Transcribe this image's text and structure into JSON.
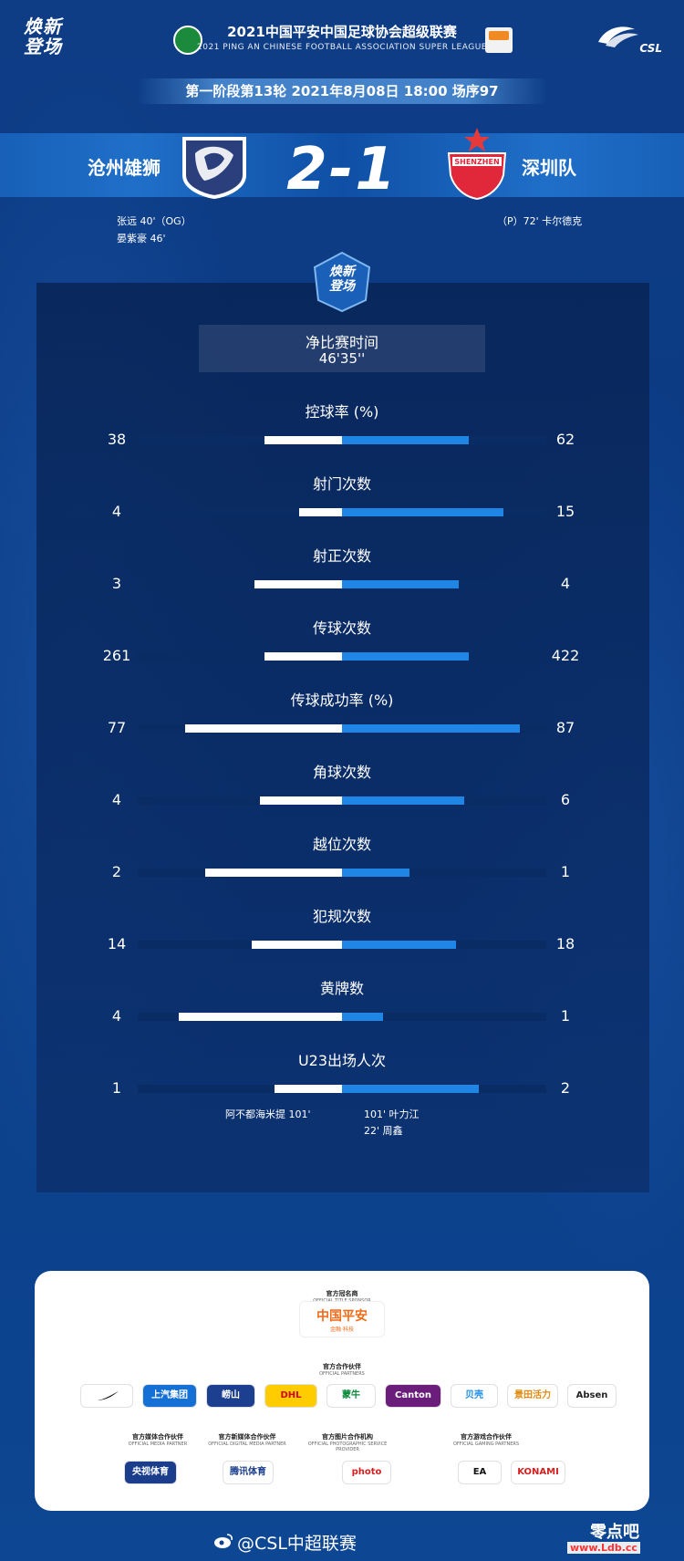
{
  "header": {
    "brand": "焕新\n登场",
    "league_title": "2021中国平安中国足球协会超级联赛",
    "league_subtitle": "2021 PING AN CHINESE FOOTBALL ASSOCIATION SUPER LEAGUE",
    "csl_logo_text": "CSL",
    "round_info": "第一阶段第13轮  2021年8月08日 18:00 场序97"
  },
  "match": {
    "home_team": "沧州雄狮",
    "away_team": "深圳队",
    "score": "2-1",
    "away_crest_text": "SHENZHEN",
    "home_scorers": [
      "张远  40'（OG）",
      "晏紫豪  46'"
    ],
    "away_scorers": [
      "（P）72'  卡尔德克"
    ]
  },
  "panel": {
    "badge_text": "焕新\n登场",
    "net_time_label": "净比赛时间",
    "net_time_value": "46'35''"
  },
  "stats": [
    {
      "label": "控球率 (%)",
      "home": "38",
      "away": "62",
      "home_frac": 0.38,
      "away_frac": 0.62
    },
    {
      "label": "射门次数",
      "home": "4",
      "away": "15",
      "home_frac": 0.21,
      "away_frac": 0.79
    },
    {
      "label": "射正次数",
      "home": "3",
      "away": "4",
      "home_frac": 0.43,
      "away_frac": 0.57
    },
    {
      "label": "传球次数",
      "home": "261",
      "away": "422",
      "home_frac": 0.38,
      "away_frac": 0.62
    },
    {
      "label": "传球成功率 (%)",
      "home": "77",
      "away": "87",
      "home_frac": 0.77,
      "away_frac": 0.87
    },
    {
      "label": "角球次数",
      "home": "4",
      "away": "6",
      "home_frac": 0.4,
      "away_frac": 0.6
    },
    {
      "label": "越位次数",
      "home": "2",
      "away": "1",
      "home_frac": 0.67,
      "away_frac": 0.33
    },
    {
      "label": "犯规次数",
      "home": "14",
      "away": "18",
      "home_frac": 0.44,
      "away_frac": 0.56
    },
    {
      "label": "黄牌数",
      "home": "4",
      "away": "1",
      "home_frac": 0.8,
      "away_frac": 0.2
    },
    {
      "label": "U23出场人次",
      "home": "1",
      "away": "2",
      "home_frac": 0.33,
      "away_frac": 0.67
    }
  ],
  "u23": {
    "home_players": [
      "阿不都海米提   101'"
    ],
    "away_players": [
      "101'   叶力江",
      "22'   周鑫"
    ]
  },
  "sponsors": {
    "title_sponsor_caption": "官方冠名商",
    "title_sponsor_caption_en": "OFFICIAL TITLE SPONSOR",
    "title_sponsor_name": "中国平安",
    "title_sponsor_tag": "金融·科技",
    "partners_caption": "官方合作伙伴",
    "partners_caption_en": "OFFICIAL PARTNERS",
    "partners": [
      {
        "name": "",
        "bg": "#ffffff",
        "fg": "#111111"
      },
      {
        "name": "上汽集团",
        "bg": "#1470d4",
        "fg": "#ffffff"
      },
      {
        "name": "崂山",
        "bg": "#1d3f8f",
        "fg": "#ffffff"
      },
      {
        "name": "DHL",
        "bg": "#ffcc00",
        "fg": "#d40511"
      },
      {
        "name": "蒙牛",
        "bg": "#ffffff",
        "fg": "#0a8a3a"
      },
      {
        "name": "Canton",
        "bg": "#6a1d7a",
        "fg": "#ffffff"
      },
      {
        "name": "贝壳",
        "bg": "#ffffff",
        "fg": "#1d8de6"
      },
      {
        "name": "景田活力",
        "bg": "#ffffff",
        "fg": "#e08a10"
      },
      {
        "name": "Absen",
        "bg": "#ffffff",
        "fg": "#222222"
      }
    ],
    "group_captions": [
      {
        "cn": "官方媒体合作伙伴",
        "en": "OFFICIAL MEDIA PARTNER"
      },
      {
        "cn": "官方新媒体合作伙伴",
        "en": "OFFICIAL DIGITAL MEDIA PARTNER"
      },
      {
        "cn": "官方图片合作机构",
        "en": "OFFICIAL PHOTOGRAPHIC SERVICE PROVIDER"
      },
      {
        "cn": "官方游戏合作伙伴",
        "en": "OFFICIAL GAMING PARTNERS"
      }
    ],
    "media_partners": [
      {
        "name": "央视体育",
        "bg": "#1a3e8c",
        "fg": "#ffffff"
      },
      {
        "name": "腾讯体育",
        "bg": "#ffffff",
        "fg": "#1a3e8c"
      },
      {
        "name": "photo",
        "bg": "#ffffff",
        "fg": "#d42020"
      },
      {
        "name": "EA",
        "bg": "#ffffff",
        "fg": "#111111"
      },
      {
        "name": "KONAMI",
        "bg": "#ffffff",
        "fg": "#d42020"
      }
    ]
  },
  "footer": {
    "handle": "@CSL中超联赛",
    "watermark": "零点吧",
    "watermark_url": "www.Ldb.cc"
  },
  "colors": {
    "background": "#0d3f8c",
    "home_bar": "#ffffff",
    "away_bar": "#1f86e6",
    "track": "#0a2c64"
  }
}
